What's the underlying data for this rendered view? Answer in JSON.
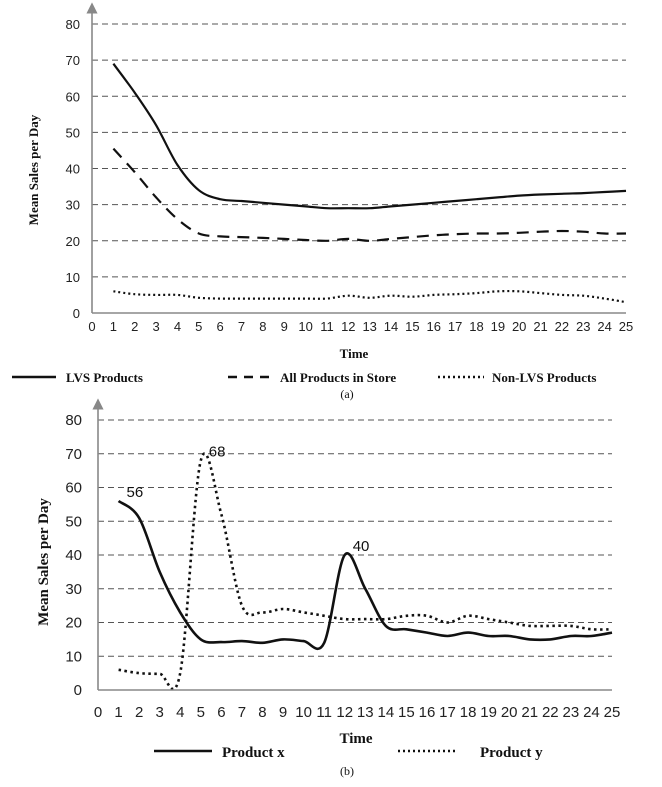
{
  "chart_data": [
    {
      "type": "line",
      "panel": "a",
      "caption": "(a)",
      "xlabel": "Time",
      "ylabel": "Mean Sales per Day",
      "xlim": [
        0,
        25
      ],
      "ylim": [
        0,
        80
      ],
      "x_ticks": [
        0,
        1,
        2,
        3,
        4,
        5,
        6,
        7,
        8,
        9,
        10,
        11,
        12,
        13,
        14,
        15,
        16,
        17,
        18,
        19,
        20,
        21,
        22,
        23,
        24,
        25
      ],
      "y_ticks": [
        0,
        10,
        20,
        30,
        40,
        50,
        60,
        70,
        80
      ],
      "grid": true,
      "legend_position": "bottom",
      "x": [
        1,
        2,
        3,
        4,
        5,
        6,
        7,
        8,
        9,
        10,
        11,
        12,
        13,
        14,
        15,
        16,
        17,
        18,
        19,
        20,
        21,
        22,
        23,
        24,
        25
      ],
      "series": [
        {
          "name": "LVS Products",
          "style": "solid",
          "color": "#111111",
          "values": [
            69,
            61,
            52,
            41,
            34,
            31.5,
            31,
            30.5,
            30,
            29.5,
            29,
            29,
            29,
            29.5,
            30,
            30.5,
            31,
            31.5,
            32,
            32.5,
            32.8,
            33,
            33.2,
            33.5,
            33.8
          ]
        },
        {
          "name": "All Products in Store",
          "style": "dashed",
          "color": "#111111",
          "values": [
            45.5,
            39,
            32,
            26,
            22,
            21.2,
            21,
            20.8,
            20.5,
            20.2,
            20,
            20.5,
            20,
            20.5,
            21,
            21.5,
            21.8,
            22,
            22,
            22.2,
            22.5,
            22.7,
            22.5,
            22,
            22
          ]
        },
        {
          "name": "Non-LVS Products",
          "style": "dotted",
          "color": "#111111",
          "values": [
            6,
            5.2,
            5,
            5,
            4.2,
            4,
            4,
            4,
            4,
            4,
            4,
            4.8,
            4.2,
            4.8,
            4.5,
            5,
            5.2,
            5.5,
            6,
            6,
            5.5,
            5,
            4.8,
            4,
            3
          ]
        }
      ]
    },
    {
      "type": "line",
      "panel": "b",
      "caption": "(b)",
      "xlabel": "Time",
      "ylabel": "Mean Sales per Day",
      "xlim": [
        0,
        25
      ],
      "ylim": [
        0,
        80
      ],
      "x_ticks": [
        0,
        1,
        2,
        3,
        4,
        5,
        6,
        7,
        8,
        9,
        10,
        11,
        12,
        13,
        14,
        15,
        16,
        17,
        18,
        19,
        20,
        21,
        22,
        23,
        24,
        25
      ],
      "y_ticks": [
        0,
        10,
        20,
        30,
        40,
        50,
        60,
        70,
        80
      ],
      "grid": true,
      "legend_position": "bottom",
      "x": [
        1,
        2,
        3,
        4,
        5,
        6,
        7,
        8,
        9,
        10,
        11,
        12,
        13,
        14,
        15,
        16,
        17,
        18,
        19,
        20,
        21,
        22,
        23,
        24,
        25
      ],
      "series": [
        {
          "name": "Product x",
          "style": "solid",
          "color": "#111111",
          "values": [
            56,
            51,
            35,
            23,
            15,
            14.2,
            14.5,
            14,
            15,
            14.5,
            14,
            40,
            30,
            19,
            18,
            17,
            16,
            17,
            16,
            16,
            15,
            15,
            16,
            16,
            17
          ]
        },
        {
          "name": "Product y",
          "style": "dotted",
          "color": "#111111",
          "values": [
            6,
            5,
            4.8,
            5,
            68,
            52,
            25,
            23,
            24,
            23,
            22,
            21,
            21,
            21,
            22,
            22,
            20,
            22,
            21,
            20,
            19,
            19,
            19,
            18,
            18
          ]
        }
      ],
      "annotations": [
        {
          "text": "56",
          "x": 1,
          "y": 56
        },
        {
          "text": "68",
          "x": 5,
          "y": 68
        },
        {
          "text": "40",
          "x": 12,
          "y": 40
        }
      ]
    }
  ]
}
